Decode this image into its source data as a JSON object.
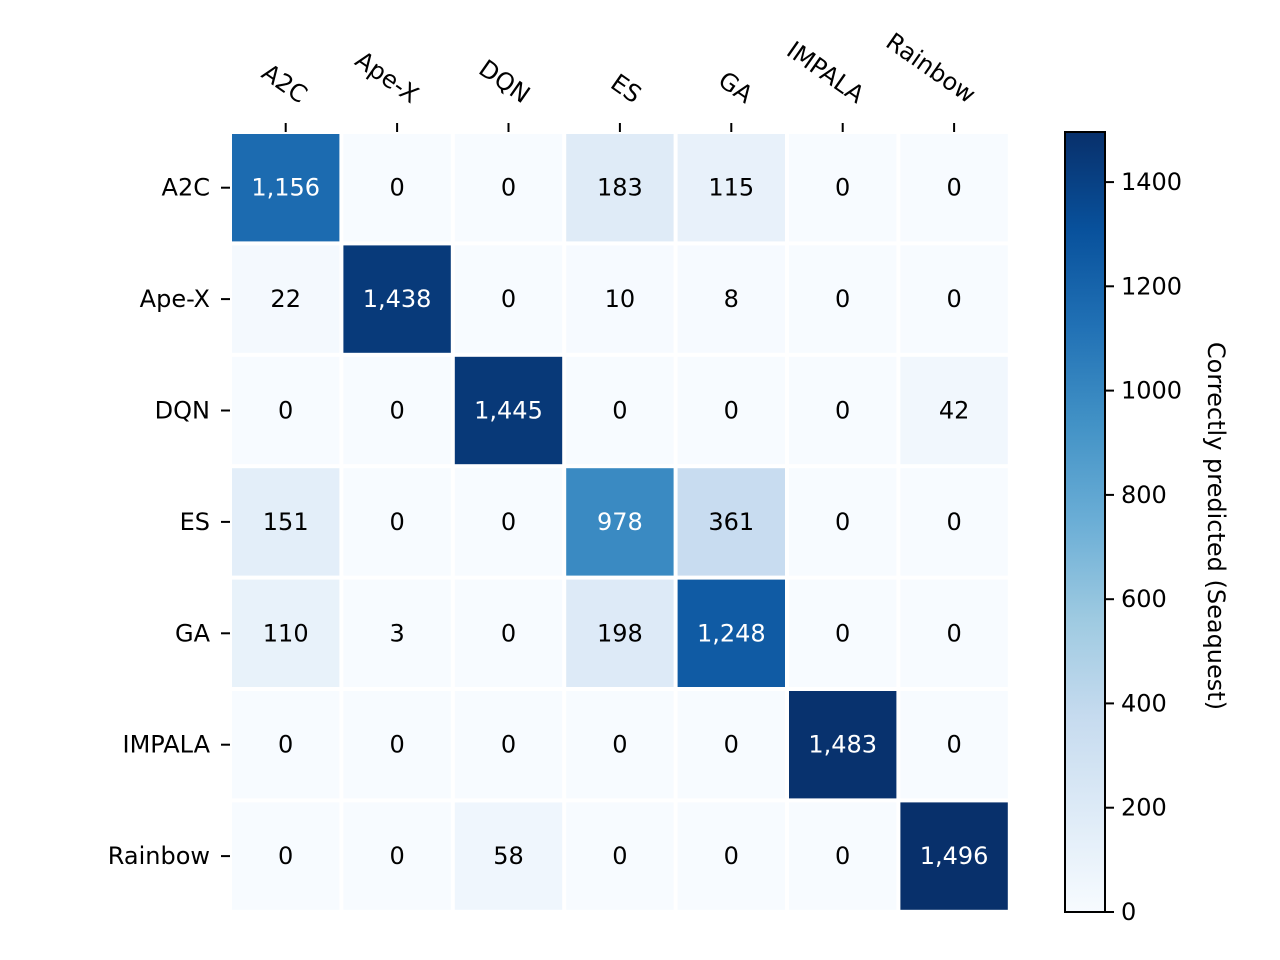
{
  "chart_data": {
    "type": "heatmap",
    "title": "",
    "x_labels": [
      "A2C",
      "Ape-X",
      "DQN",
      "ES",
      "GA",
      "IMPALA",
      "Rainbow"
    ],
    "y_labels": [
      "A2C",
      "Ape-X",
      "DQN",
      "ES",
      "GA",
      "IMPALA",
      "Rainbow"
    ],
    "values": [
      [
        1156,
        0,
        0,
        183,
        115,
        0,
        0
      ],
      [
        22,
        1438,
        0,
        10,
        8,
        0,
        0
      ],
      [
        0,
        0,
        1445,
        0,
        0,
        0,
        42
      ],
      [
        151,
        0,
        0,
        978,
        361,
        0,
        0
      ],
      [
        110,
        3,
        0,
        198,
        1248,
        0,
        0
      ],
      [
        0,
        0,
        0,
        0,
        0,
        1483,
        0
      ],
      [
        0,
        0,
        58,
        0,
        0,
        0,
        1496
      ]
    ],
    "cell_labels": [
      [
        "1,156",
        "0",
        "0",
        "183",
        "115",
        "0",
        "0"
      ],
      [
        "22",
        "1,438",
        "0",
        "10",
        "8",
        "0",
        "0"
      ],
      [
        "0",
        "0",
        "1,445",
        "0",
        "0",
        "0",
        "42"
      ],
      [
        "151",
        "0",
        "0",
        "978",
        "361",
        "0",
        "0"
      ],
      [
        "110",
        "3",
        "0",
        "198",
        "1,248",
        "0",
        "0"
      ],
      [
        "0",
        "0",
        "0",
        "0",
        "0",
        "1,483",
        "0"
      ],
      [
        "0",
        "0",
        "58",
        "0",
        "0",
        "0",
        "1,496"
      ]
    ],
    "colorbar": {
      "label": "Correctly predicted (Seaquest)",
      "range": [
        0,
        1496
      ],
      "ticks": [
        0,
        200,
        400,
        600,
        800,
        1000,
        1200,
        1400
      ],
      "tick_labels": [
        "0",
        "200",
        "400",
        "600",
        "800",
        "1000",
        "1200",
        "1400"
      ],
      "colormap": "Blues",
      "low_color": "#f7fbff",
      "high_color": "#08306b"
    },
    "x_axis_position": "top"
  }
}
